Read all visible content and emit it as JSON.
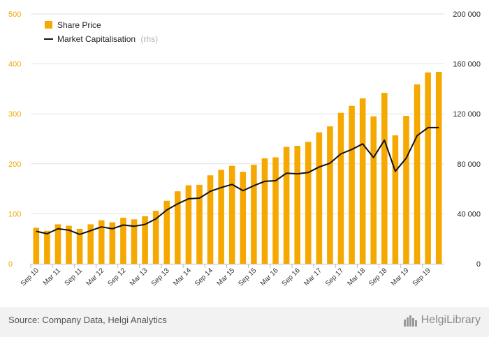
{
  "chart_data": {
    "type": "bar+line",
    "categories": [
      "Sep 10",
      "Dec 10",
      "Mar 11",
      "Jun 11",
      "Sep 11",
      "Dec 11",
      "Mar 12",
      "Jun 12",
      "Sep 12",
      "Dec 12",
      "Mar 13",
      "Jun 13",
      "Sep 13",
      "Dec 13",
      "Mar 14",
      "Jun 14",
      "Sep 14",
      "Dec 14",
      "Mar 15",
      "Jun 15",
      "Sep 15",
      "Dec 15",
      "Mar 16",
      "Jun 16",
      "Sep 16",
      "Dec 16",
      "Mar 17",
      "Jun 17",
      "Sep 17",
      "Dec 17",
      "Mar 18",
      "Jun 18",
      "Sep 18",
      "Dec 18",
      "Mar 19",
      "Jun 19",
      "Sep 19",
      "Dec 19"
    ],
    "x_tick_labels": [
      "Sep 10",
      "Mar 11",
      "Sep 11",
      "Mar 12",
      "Sep 12",
      "Mar 13",
      "Sep 13",
      "Mar 14",
      "Sep 14",
      "Mar 15",
      "Sep 15",
      "Mar 16",
      "Sep 16",
      "Mar 17",
      "Sep 17",
      "Mar 18",
      "Sep 18",
      "Mar 19",
      "Sep 19"
    ],
    "series": [
      {
        "name": "Share Price",
        "type": "bar",
        "axis": "left",
        "color": "#f5a800",
        "values": [
          72,
          66,
          79,
          76,
          70,
          79,
          87,
          83,
          92,
          89,
          95,
          106,
          126,
          145,
          157,
          158,
          177,
          188,
          196,
          184,
          198,
          211,
          213,
          234,
          236,
          244,
          263,
          275,
          302,
          316,
          331,
          295,
          342,
          257,
          296,
          359,
          383,
          384
        ]
      },
      {
        "name": "Market Capitalisation",
        "note": "(rhs)",
        "type": "line",
        "axis": "right",
        "color": "#111111",
        "values": [
          26000,
          24000,
          28000,
          27000,
          23500,
          26500,
          29500,
          28000,
          31000,
          30000,
          31500,
          36000,
          43000,
          48000,
          52000,
          52500,
          58000,
          61000,
          63500,
          58500,
          62500,
          66000,
          66500,
          72500,
          72000,
          73000,
          77500,
          80500,
          88000,
          91500,
          96000,
          85000,
          99000,
          74000,
          84500,
          102500,
          109000,
          109000
        ]
      }
    ],
    "ylim_left": [
      0,
      500
    ],
    "yticks_left": [
      "0",
      "100",
      "200",
      "300",
      "400",
      "500"
    ],
    "ylim_right": [
      0,
      200000
    ],
    "yticks_right": [
      "0",
      "40 000",
      "80 000",
      "120 000",
      "160 000",
      "200 000"
    ],
    "grid": true,
    "legend_position": "top-left"
  },
  "legend": {
    "share_price": "Share Price",
    "market_cap": "Market Capitalisation",
    "market_cap_note": "(rhs)"
  },
  "footer": {
    "source": "Source: Company Data, Helgi Analytics",
    "brand": "HelgiLibrary"
  }
}
